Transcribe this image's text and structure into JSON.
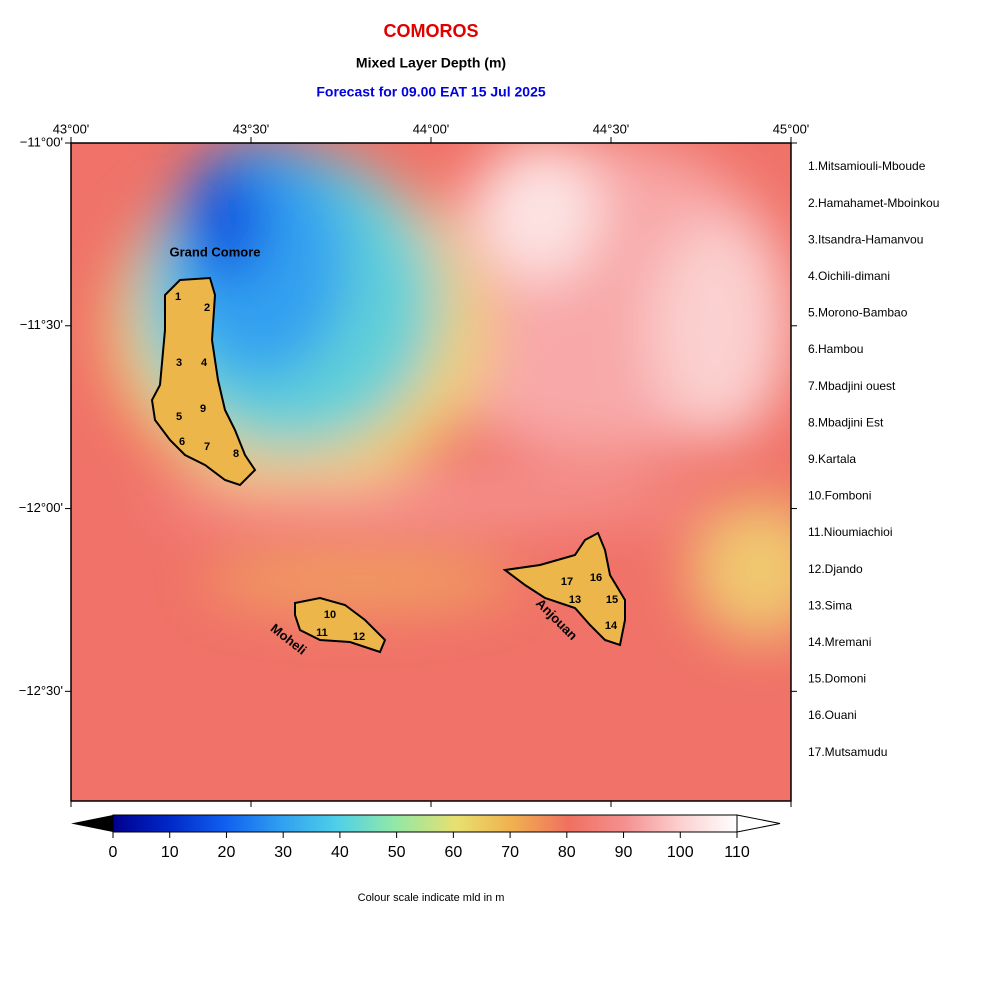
{
  "title": "COMOROS",
  "subtitle": "Mixed Layer Depth (m)",
  "forecast": "Forecast for  09.00 EAT 15 Jul 2025",
  "map": {
    "xlim": [
      43,
      45
    ],
    "ylim": [
      -12.8,
      -11
    ],
    "lon_ticks": [
      {
        "value": 43,
        "label": "43°00'"
      },
      {
        "value": 43.5,
        "label": "43°30'"
      },
      {
        "value": 44,
        "label": "44°00'"
      },
      {
        "value": 44.5,
        "label": "44°30'"
      },
      {
        "value": 45,
        "label": "45°00'"
      }
    ],
    "lat_ticks": [
      {
        "value": -11,
        "label": "−11°00'"
      },
      {
        "value": -11.5,
        "label": "−11°30'"
      },
      {
        "value": -12,
        "label": "−12°00'"
      },
      {
        "value": -12.5,
        "label": "−12°30'"
      }
    ],
    "island_names": [
      "Grand Comore",
      "Moheli",
      "Anjouan"
    ],
    "region_numbers": [
      "1",
      "2",
      "3",
      "4",
      "5",
      "6",
      "7",
      "8",
      "9",
      "10",
      "11",
      "12",
      "13",
      "14",
      "15",
      "16",
      "17"
    ]
  },
  "regions": [
    "1.Mitsamiouli-Mboude",
    "2.Hamahamet-Mboinkou",
    "3.Itsandra-Hamanvou",
    "4.Oichili-dimani",
    "5.Morono-Bambao",
    "6.Hambou",
    "7.Mbadjini ouest",
    "8.Mbadjini Est",
    "9.Kartala",
    "10.Fomboni",
    "11.Nioumiachioi",
    "12.Djando",
    "13.Sima",
    "14.Mremani",
    "15.Domoni",
    "16.Ouani",
    "17.Mutsamudu"
  ],
  "colorbar": {
    "lim": [
      0,
      110
    ],
    "ticks": [
      0,
      10,
      20,
      30,
      40,
      50,
      60,
      70,
      80,
      90,
      100,
      110
    ],
    "caption": "Colour scale indicate mld in m"
  }
}
